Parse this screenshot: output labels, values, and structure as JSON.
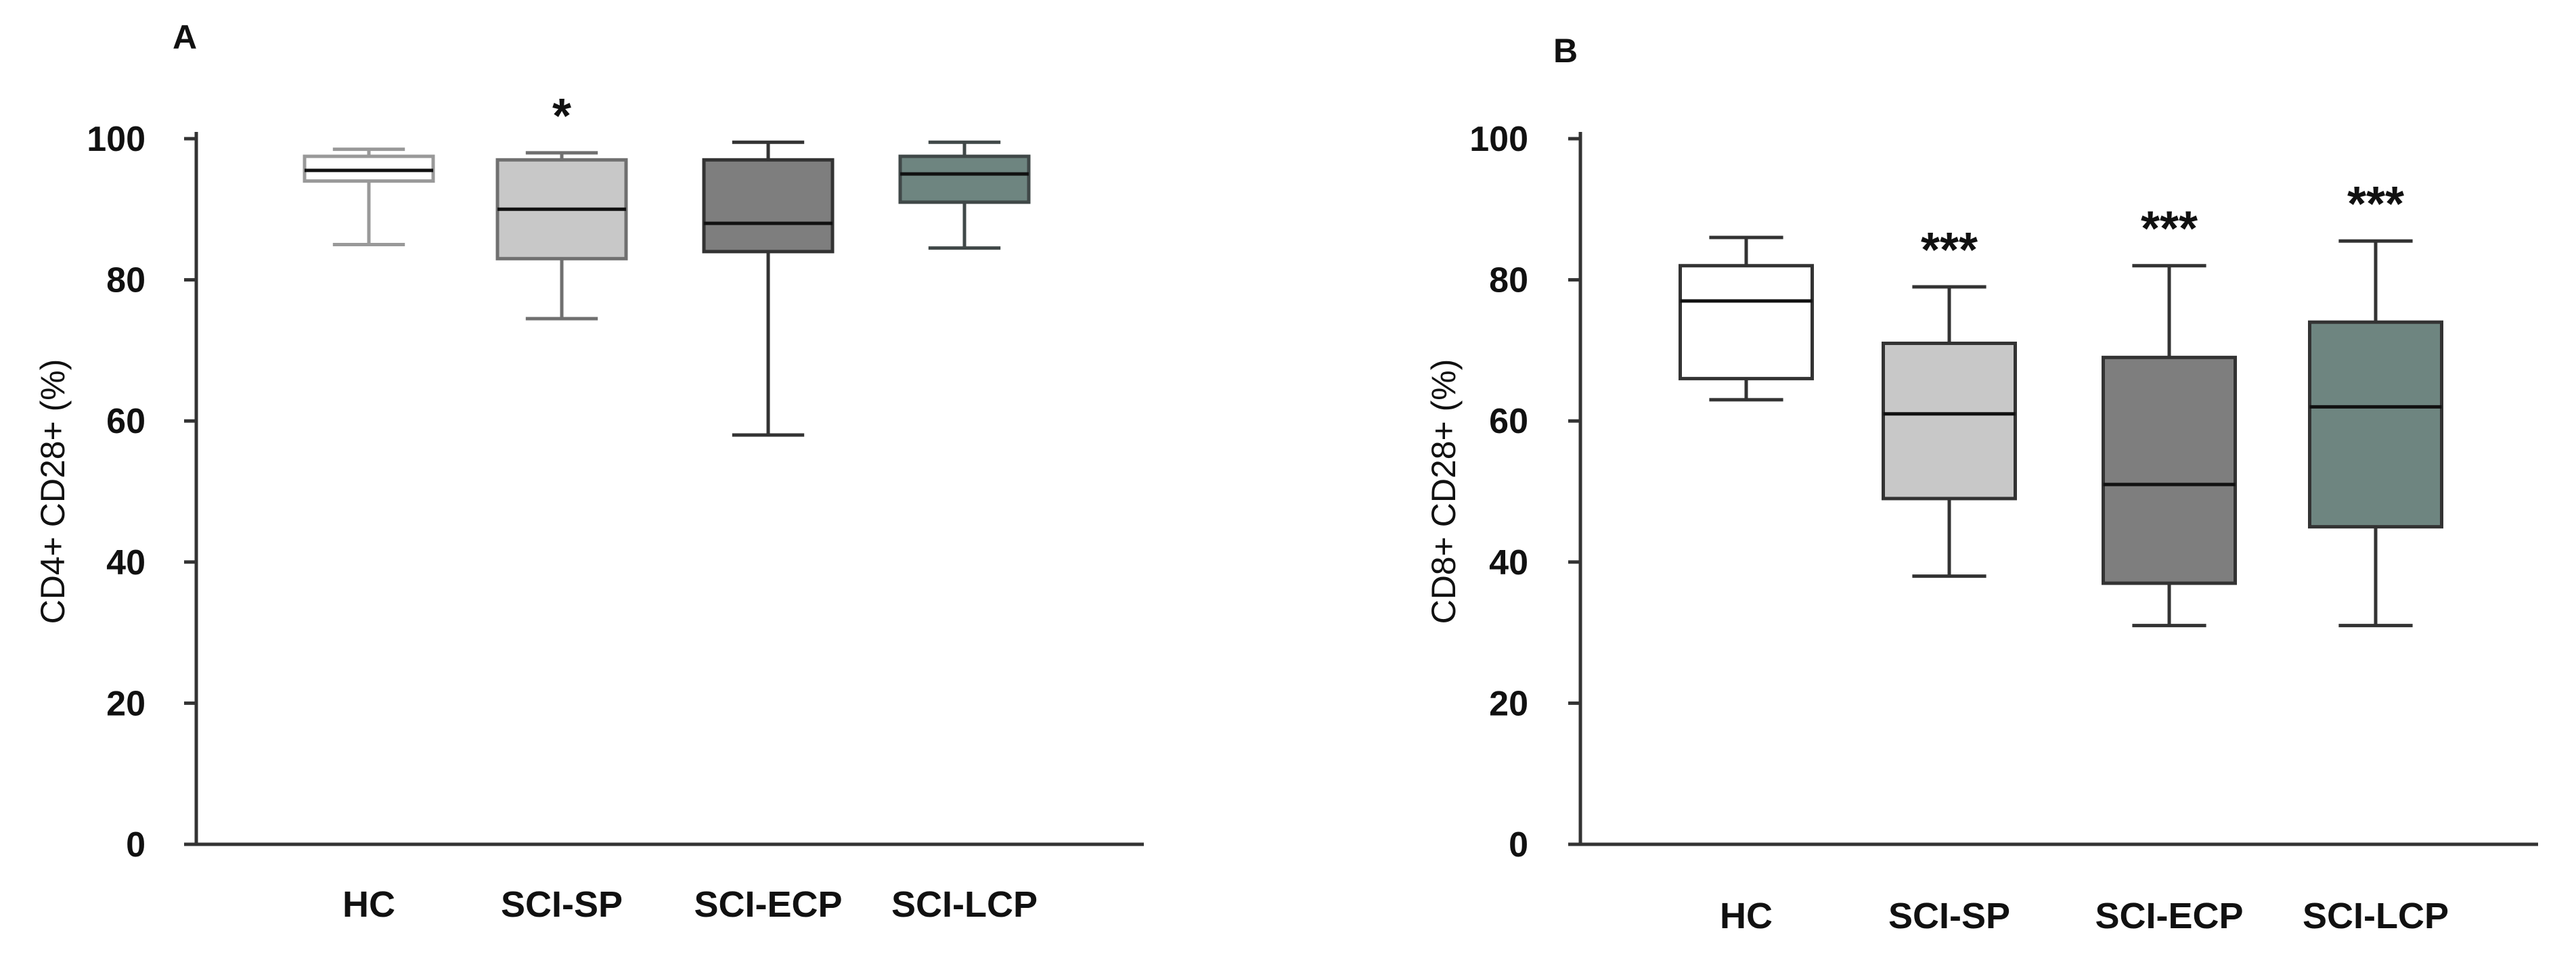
{
  "chart_data": [
    {
      "type": "box",
      "panel": "A",
      "ylabel": "CD4+ CD28+ (%)",
      "ylim": [
        0,
        100
      ],
      "yticks": [
        0,
        20,
        40,
        60,
        80,
        100
      ],
      "categories": [
        "HC",
        "SCI-SP",
        "SCI-ECP",
        "SCI-LCP"
      ],
      "boxes": [
        {
          "category": "HC",
          "whisker_low": 85,
          "q1": 94,
          "median": 95.5,
          "q3": 97.5,
          "whisker_high": 98.5,
          "fill": "#ffffff",
          "stroke": "#999999",
          "annotation": ""
        },
        {
          "category": "SCI-SP",
          "whisker_low": 74.5,
          "q1": 83,
          "median": 90,
          "q3": 97,
          "whisker_high": 98,
          "fill": "#c8c8c8",
          "stroke": "#707070",
          "annotation": "*"
        },
        {
          "category": "SCI-ECP",
          "whisker_low": 58,
          "q1": 84,
          "median": 88,
          "q3": 97,
          "whisker_high": 99.5,
          "fill": "#7e7e7e",
          "stroke": "#333333",
          "annotation": ""
        },
        {
          "category": "SCI-LCP",
          "whisker_low": 84.5,
          "q1": 91,
          "median": 95,
          "q3": 97.5,
          "whisker_high": 99.5,
          "fill": "#6e8580",
          "stroke": "#404848",
          "annotation": ""
        }
      ]
    },
    {
      "type": "box",
      "panel": "B",
      "ylabel": "CD8+ CD28+ (%)",
      "ylim": [
        0,
        100
      ],
      "yticks": [
        0,
        20,
        40,
        60,
        80,
        100
      ],
      "categories": [
        "HC",
        "SCI-SP",
        "SCI-ECP",
        "SCI-LCP"
      ],
      "boxes": [
        {
          "category": "HC",
          "whisker_low": 63,
          "q1": 66,
          "median": 77,
          "q3": 82,
          "whisker_high": 86,
          "fill": "#ffffff",
          "stroke": "#333333",
          "annotation": ""
        },
        {
          "category": "SCI-SP",
          "whisker_low": 38,
          "q1": 49,
          "median": 61,
          "q3": 71,
          "whisker_high": 79,
          "fill": "#c8c8c8",
          "stroke": "#333333",
          "annotation": "***"
        },
        {
          "category": "SCI-ECP",
          "whisker_low": 31,
          "q1": 37,
          "median": 51,
          "q3": 69,
          "whisker_high": 82,
          "fill": "#7e7e7e",
          "stroke": "#333333",
          "annotation": "***"
        },
        {
          "category": "SCI-LCP",
          "whisker_low": 31,
          "q1": 45,
          "median": 62,
          "q3": 74,
          "whisker_high": 85.5,
          "fill": "#6e8580",
          "stroke": "#333333",
          "annotation": "***"
        }
      ]
    }
  ]
}
